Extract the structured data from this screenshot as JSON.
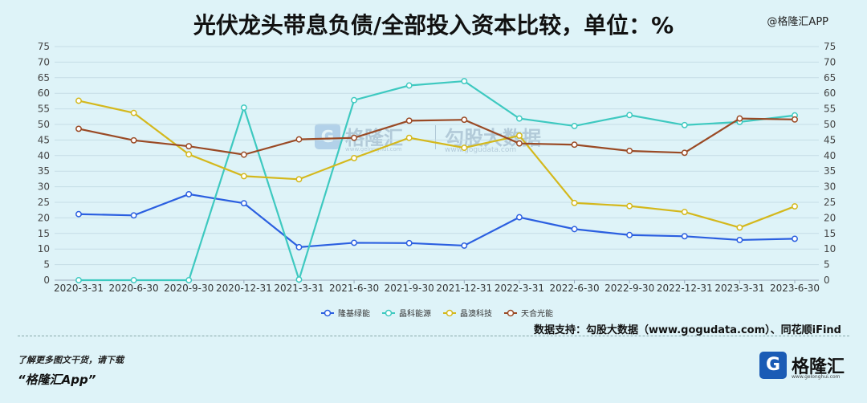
{
  "title": "光伏龙头带息负债/全部投入资本比较，单位：%",
  "top_watermark": "@格隆汇APP",
  "center_watermark": {
    "brand": "格隆汇",
    "brand_sub": "www.gelonghui.com",
    "data_brand": "勾股大数据",
    "data_sub": "www.gogudata.com",
    "logo_letter": "G"
  },
  "source": "数据支持：勾股大数据（www.gogudata.com）、同花顺iFind",
  "footer": {
    "line1": "了解更多图文干货，请下载",
    "line2": "“格隆汇App”",
    "logo_letter": "G",
    "logo_text": "格隆汇",
    "logo_sub": "www.gelonghui.com"
  },
  "chart_data": {
    "type": "line",
    "categories": [
      "2020-3-31",
      "2020-6-30",
      "2020-9-30",
      "2020-12-31",
      "2021-3-31",
      "2021-6-30",
      "2021-9-30",
      "2021-12-31",
      "2022-3-31",
      "2022-6-30",
      "2022-9-30",
      "2022-12-31",
      "2023-3-31",
      "2023-6-30"
    ],
    "ylim": [
      0,
      75
    ],
    "yticks": [
      0,
      5,
      10,
      15,
      20,
      25,
      30,
      35,
      40,
      45,
      50,
      55,
      60,
      65,
      70,
      75
    ],
    "dual_y_axis": true,
    "grid": true,
    "legend_position": "bottom",
    "series": [
      {
        "name": "隆基绿能",
        "color": "#2b5fe0",
        "values": [
          21.2,
          20.8,
          27.6,
          24.7,
          10.6,
          12.0,
          11.9,
          11.1,
          20.2,
          16.4,
          14.5,
          14.1,
          12.9,
          13.3
        ]
      },
      {
        "name": "晶科能源",
        "color": "#3ec9c0",
        "values": [
          0,
          0,
          0,
          55.4,
          0.2,
          57.8,
          62.5,
          63.9,
          51.9,
          49.5,
          53.0,
          49.8,
          50.8,
          52.9
        ]
      },
      {
        "name": "晶澳科技",
        "color": "#d4b81c",
        "values": [
          57.6,
          53.7,
          40.4,
          33.4,
          32.4,
          39.2,
          45.7,
          42.5,
          46.4,
          24.8,
          23.8,
          21.9,
          16.9,
          23.7
        ]
      },
      {
        "name": "天合光能",
        "color": "#9a4a25",
        "values": [
          48.6,
          44.9,
          43.0,
          40.3,
          45.2,
          45.7,
          51.2,
          51.5,
          43.9,
          43.5,
          41.5,
          40.9,
          51.9,
          51.6
        ]
      }
    ]
  }
}
